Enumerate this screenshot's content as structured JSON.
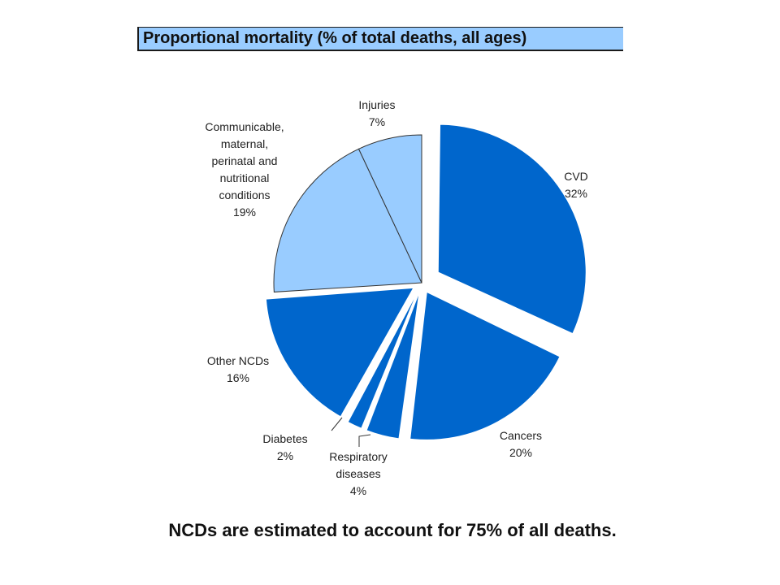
{
  "title": "Proportional mortality (% of total deaths, all ages)",
  "footnote": "NCDs are estimated to account for 75% of all deaths.",
  "chart_data": {
    "type": "pie",
    "title": "Proportional mortality (% of total deaths, all ages)",
    "slices": [
      {
        "label": [
          "CVD"
        ],
        "value": 32,
        "value_label": "32%",
        "color": "#0066cc",
        "exploded": true
      },
      {
        "label": [
          "Cancers"
        ],
        "value": 20,
        "value_label": "20%",
        "color": "#0066cc",
        "exploded": true
      },
      {
        "label": [
          "Respiratory",
          "diseases"
        ],
        "value": 4,
        "value_label": "4%",
        "color": "#0066cc",
        "exploded": true
      },
      {
        "label": [
          "Diabetes"
        ],
        "value": 2,
        "value_label": "2%",
        "color": "#0066cc",
        "exploded": true
      },
      {
        "label": [
          "Other NCDs"
        ],
        "value": 16,
        "value_label": "16%",
        "color": "#0066cc",
        "exploded": true
      },
      {
        "label": [
          "Communicable,",
          "maternal,",
          "perinatal and",
          "nutritional",
          "conditions"
        ],
        "value": 19,
        "value_label": "19%",
        "color": "#99ccff",
        "exploded": false
      },
      {
        "label": [
          "Injuries"
        ],
        "value": 7,
        "value_label": "7%",
        "color": "#99ccff",
        "exploded": false
      }
    ]
  }
}
